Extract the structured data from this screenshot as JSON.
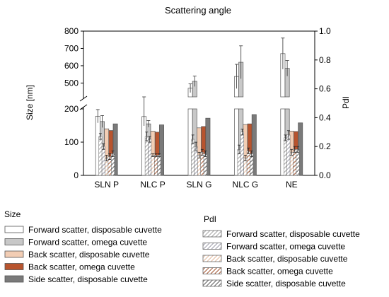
{
  "chart_data": {
    "type": "bar",
    "title": "Scattering angle",
    "ylabel": "Size [nm]",
    "y2label": "PdI",
    "categories": [
      "SLN P",
      "NLC P",
      "SLN G",
      "NLC G",
      "NE"
    ],
    "y_lower": {
      "ticks": [
        "0",
        "100",
        "200"
      ],
      "ylim": [
        0,
        200
      ]
    },
    "y_upper": {
      "ticks": [
        "500",
        "600",
        "700",
        "800"
      ],
      "ylim": [
        420,
        800
      ]
    },
    "y2": {
      "ticks": [
        "0.0",
        "0.2",
        "0.4",
        "0.6",
        "0.8",
        "1.0"
      ],
      "ylim": [
        0,
        1
      ]
    },
    "size_series": [
      {
        "name": "Forward scatter, disposable cuvette",
        "values": [
          178,
          177,
          470,
          538,
          670
        ],
        "err": [
          20,
          28,
          25,
          70,
          90
        ],
        "fill": "#ffffff"
      },
      {
        "name": "Forward scatter, omega cuvette",
        "values": [
          162,
          155,
          510,
          620,
          585
        ],
        "err": [
          18,
          10,
          30,
          95,
          45
        ],
        "fill": "#c8c8c8"
      },
      {
        "name": "Back scatter, disposable cuvette",
        "values": [
          140,
          133,
          143,
          153,
          133
        ],
        "err": [
          0,
          0,
          0,
          0,
          0
        ],
        "fill": "#f2cdb4"
      },
      {
        "name": "Back scatter, omega cuvette",
        "values": [
          135,
          130,
          147,
          155,
          132
        ],
        "err": [
          0,
          0,
          0,
          0,
          0
        ],
        "fill": "#b8542e"
      },
      {
        "name": "Side scatter, disposable cuvette",
        "values": [
          155,
          152,
          172,
          183,
          158
        ],
        "err": [
          0,
          0,
          0,
          0,
          0
        ],
        "fill": "#7a7a7a"
      }
    ],
    "pdi_series": [
      {
        "name": "Forward scatter, disposable cuvette",
        "values": [
          0.27,
          0.27,
          0.25,
          0.18,
          0.26
        ],
        "err": [
          0.02,
          0.03,
          0.03,
          0.03,
          0.02
        ]
      },
      {
        "name": "Forward scatter, omega cuvette",
        "values": [
          0.2,
          0.25,
          0.2,
          0.3,
          0.28
        ],
        "err": [
          0.02,
          0.02,
          0.03,
          0.02,
          0.03
        ]
      },
      {
        "name": "Back scatter, disposable cuvette",
        "values": [
          0.12,
          0.14,
          0.14,
          0.12,
          0.16
        ],
        "err": [
          0.02,
          0.01,
          0.02,
          0.02,
          0.02
        ]
      },
      {
        "name": "Back scatter, omega cuvette",
        "values": [
          0.13,
          0.14,
          0.16,
          0.17,
          0.18
        ],
        "err": [
          0.02,
          0.01,
          0.02,
          0.02,
          0.02
        ]
      },
      {
        "name": "Side scatter, disposable cuvette",
        "values": [
          0.15,
          0.14,
          0.15,
          0.15,
          0.18
        ],
        "err": [
          0.02,
          0.01,
          0.02,
          0.02,
          0.02
        ]
      }
    ],
    "legend": {
      "size_title": "Size",
      "pdi_title": "PdI",
      "placement": "bottom"
    },
    "grid": false
  }
}
